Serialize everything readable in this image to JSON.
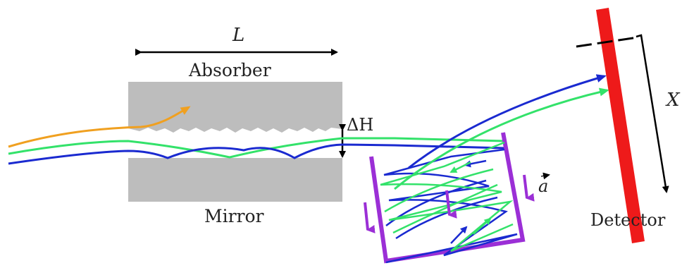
{
  "labels": {
    "length": "L",
    "absorber": "Absorber",
    "mirror": "Mirror",
    "gap": "ΔH",
    "acceleration": "a",
    "detector": "Detector",
    "position": "X"
  },
  "colors": {
    "absorber_block": "#bdbdbd",
    "mirror_block": "#bdbdbd",
    "orange_trajectory": "#f0a020",
    "green_trajectory": "#33e26a",
    "blue_trajectory": "#1a2ad0",
    "vibrating_box": "#9b2fd6",
    "detector_bar": "#ee1a1a",
    "arrows": "#000000"
  }
}
